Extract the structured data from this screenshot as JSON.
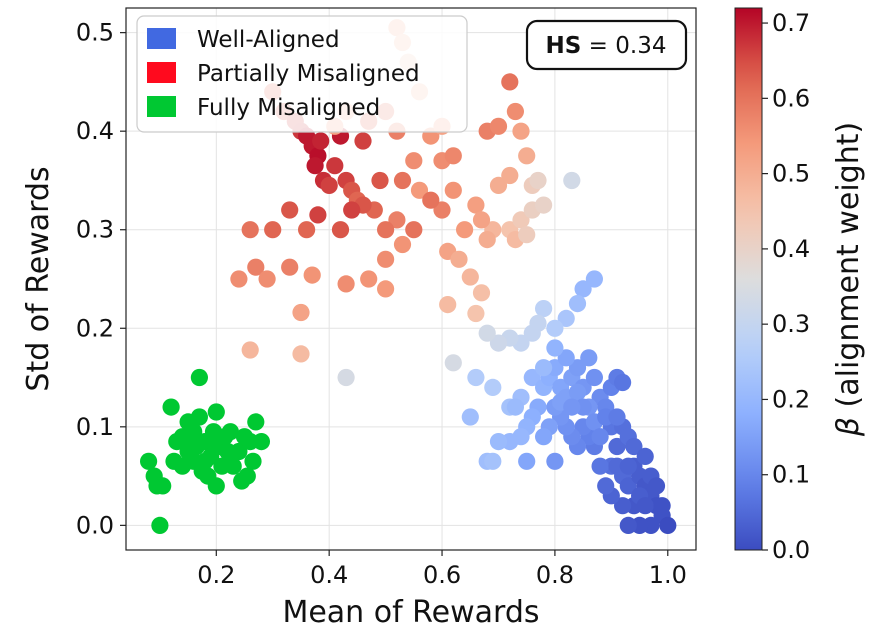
{
  "chart_data": {
    "type": "scatter",
    "xlabel": "Mean of Rewards",
    "ylabel": "Std of Rewards",
    "xlim": [
      0.04,
      1.05
    ],
    "ylim": [
      -0.025,
      0.525
    ],
    "xticks": [
      "0.2",
      "0.4",
      "0.6",
      "0.8",
      "1.0"
    ],
    "yticks": [
      "0.0",
      "0.1",
      "0.2",
      "0.3",
      "0.4",
      "0.5"
    ],
    "grid": true,
    "annotation": {
      "bold": "HS",
      "text": " = 0.34",
      "placement": "top-right"
    },
    "legend": {
      "placement": "top-left",
      "entries": [
        {
          "label": "Well-Aligned",
          "color": "#4169e1"
        },
        {
          "label": "Partially Misaligned",
          "color": "#ff0a1e"
        },
        {
          "label": "Fully Misaligned",
          "color": "#00c832"
        }
      ]
    },
    "colorbar": {
      "label": "β (alignment weight)",
      "label_symbol": "β",
      "label_rest": " (alignment weight)",
      "colormap": "coolwarm",
      "range": [
        0.0,
        0.72
      ],
      "ticks": [
        "0.0",
        "0.1",
        "0.2",
        "0.3",
        "0.4",
        "0.5",
        "0.6",
        "0.7"
      ]
    },
    "series": [
      {
        "group": "Fully Misaligned",
        "color": "#00c832",
        "points": [
          [
            0.08,
            0.065
          ],
          [
            0.09,
            0.05
          ],
          [
            0.095,
            0.04
          ],
          [
            0.105,
            0.04
          ],
          [
            0.1,
            0.0
          ],
          [
            0.12,
            0.12
          ],
          [
            0.125,
            0.065
          ],
          [
            0.13,
            0.085
          ],
          [
            0.14,
            0.09
          ],
          [
            0.14,
            0.06
          ],
          [
            0.15,
            0.105
          ],
          [
            0.15,
            0.075
          ],
          [
            0.16,
            0.095
          ],
          [
            0.16,
            0.065
          ],
          [
            0.165,
            0.08
          ],
          [
            0.17,
            0.15
          ],
          [
            0.17,
            0.11
          ],
          [
            0.175,
            0.055
          ],
          [
            0.18,
            0.085
          ],
          [
            0.18,
            0.065
          ],
          [
            0.19,
            0.07
          ],
          [
            0.195,
            0.095
          ],
          [
            0.2,
            0.115
          ],
          [
            0.205,
            0.08
          ],
          [
            0.21,
            0.06
          ],
          [
            0.215,
            0.09
          ],
          [
            0.22,
            0.075
          ],
          [
            0.225,
            0.095
          ],
          [
            0.23,
            0.06
          ],
          [
            0.24,
            0.075
          ],
          [
            0.245,
            0.045
          ],
          [
            0.25,
            0.09
          ],
          [
            0.255,
            0.05
          ],
          [
            0.26,
            0.085
          ],
          [
            0.265,
            0.065
          ],
          [
            0.27,
            0.105
          ],
          [
            0.28,
            0.085
          ],
          [
            0.15,
            0.085
          ],
          [
            0.185,
            0.05
          ],
          [
            0.2,
            0.04
          ]
        ]
      },
      {
        "group": "Partially Misaligned",
        "points": [
          [
            0.3,
            0.44,
            0.62
          ],
          [
            0.32,
            0.42,
            0.64
          ],
          [
            0.34,
            0.41,
            0.66
          ],
          [
            0.35,
            0.4,
            0.67
          ],
          [
            0.36,
            0.395,
            0.7
          ],
          [
            0.37,
            0.385,
            0.7
          ],
          [
            0.38,
            0.375,
            0.71
          ],
          [
            0.375,
            0.365,
            0.7
          ],
          [
            0.385,
            0.39,
            0.69
          ],
          [
            0.39,
            0.35,
            0.68
          ],
          [
            0.4,
            0.345,
            0.66
          ],
          [
            0.41,
            0.365,
            0.67
          ],
          [
            0.42,
            0.395,
            0.7
          ],
          [
            0.43,
            0.35,
            0.66
          ],
          [
            0.44,
            0.34,
            0.64
          ],
          [
            0.45,
            0.33,
            0.62
          ],
          [
            0.46,
            0.39,
            0.66
          ],
          [
            0.47,
            0.41,
            0.62
          ],
          [
            0.49,
            0.35,
            0.64
          ],
          [
            0.5,
            0.42,
            0.6
          ],
          [
            0.52,
            0.4,
            0.58
          ],
          [
            0.53,
            0.35,
            0.6
          ],
          [
            0.55,
            0.37,
            0.56
          ],
          [
            0.56,
            0.34,
            0.54
          ],
          [
            0.58,
            0.395,
            0.55
          ],
          [
            0.6,
            0.37,
            0.56
          ],
          [
            0.62,
            0.375,
            0.57
          ],
          [
            0.62,
            0.34,
            0.55
          ],
          [
            0.66,
            0.325,
            0.53
          ],
          [
            0.68,
            0.4,
            0.58
          ],
          [
            0.7,
            0.405,
            0.57
          ],
          [
            0.72,
            0.45,
            0.6
          ],
          [
            0.73,
            0.42,
            0.56
          ],
          [
            0.74,
            0.4,
            0.52
          ],
          [
            0.75,
            0.375,
            0.5
          ],
          [
            0.7,
            0.345,
            0.5
          ],
          [
            0.72,
            0.355,
            0.5
          ],
          [
            0.69,
            0.3,
            0.48
          ],
          [
            0.72,
            0.3,
            0.45
          ],
          [
            0.74,
            0.31,
            0.43
          ],
          [
            0.76,
            0.32,
            0.41
          ],
          [
            0.78,
            0.325,
            0.4
          ],
          [
            0.76,
            0.345,
            0.42
          ],
          [
            0.73,
            0.29,
            0.47
          ],
          [
            0.67,
            0.31,
            0.52
          ],
          [
            0.68,
            0.29,
            0.5
          ],
          [
            0.64,
            0.3,
            0.54
          ],
          [
            0.6,
            0.32,
            0.58
          ],
          [
            0.58,
            0.33,
            0.6
          ],
          [
            0.55,
            0.3,
            0.6
          ],
          [
            0.52,
            0.31,
            0.58
          ],
          [
            0.5,
            0.3,
            0.6
          ],
          [
            0.48,
            0.32,
            0.62
          ],
          [
            0.46,
            0.325,
            0.64
          ],
          [
            0.44,
            0.32,
            0.66
          ],
          [
            0.42,
            0.3,
            0.64
          ],
          [
            0.38,
            0.315,
            0.66
          ],
          [
            0.36,
            0.3,
            0.62
          ],
          [
            0.33,
            0.32,
            0.64
          ],
          [
            0.3,
            0.3,
            0.62
          ],
          [
            0.26,
            0.3,
            0.6
          ],
          [
            0.27,
            0.262,
            0.58
          ],
          [
            0.29,
            0.25,
            0.56
          ],
          [
            0.24,
            0.25,
            0.56
          ],
          [
            0.33,
            0.262,
            0.58
          ],
          [
            0.37,
            0.254,
            0.55
          ],
          [
            0.43,
            0.245,
            0.56
          ],
          [
            0.47,
            0.25,
            0.55
          ],
          [
            0.5,
            0.24,
            0.54
          ],
          [
            0.5,
            0.27,
            0.56
          ],
          [
            0.53,
            0.285,
            0.55
          ],
          [
            0.61,
            0.278,
            0.52
          ],
          [
            0.63,
            0.27,
            0.5
          ],
          [
            0.65,
            0.252,
            0.48
          ],
          [
            0.67,
            0.236,
            0.46
          ],
          [
            0.61,
            0.224,
            0.47
          ],
          [
            0.66,
            0.215,
            0.45
          ],
          [
            0.35,
            0.216,
            0.52
          ],
          [
            0.26,
            0.178,
            0.48
          ],
          [
            0.35,
            0.174,
            0.47
          ],
          [
            0.6,
            0.405,
            0.52
          ],
          [
            0.56,
            0.44,
            0.47
          ],
          [
            0.54,
            0.47,
            0.44
          ],
          [
            0.52,
            0.505,
            0.5
          ],
          [
            0.53,
            0.49,
            0.47
          ],
          [
            0.41,
            0.405,
            0.52
          ],
          [
            0.43,
            0.42,
            0.5
          ],
          [
            0.75,
            0.295,
            0.42
          ],
          [
            0.77,
            0.35,
            0.4
          ]
        ]
      },
      {
        "group": "Well-Aligned",
        "points": [
          [
            0.83,
            0.35,
            0.33
          ],
          [
            0.87,
            0.25,
            0.2
          ],
          [
            0.85,
            0.24,
            0.2
          ],
          [
            0.84,
            0.225,
            0.22
          ],
          [
            0.82,
            0.21,
            0.24
          ],
          [
            0.8,
            0.2,
            0.26
          ],
          [
            0.78,
            0.22,
            0.28
          ],
          [
            0.77,
            0.205,
            0.3
          ],
          [
            0.76,
            0.195,
            0.3
          ],
          [
            0.74,
            0.185,
            0.3
          ],
          [
            0.72,
            0.19,
            0.31
          ],
          [
            0.7,
            0.185,
            0.32
          ],
          [
            0.68,
            0.195,
            0.33
          ],
          [
            0.62,
            0.165,
            0.34
          ],
          [
            0.43,
            0.15,
            0.34
          ],
          [
            0.66,
            0.15,
            0.26
          ],
          [
            0.65,
            0.11,
            0.22
          ],
          [
            0.69,
            0.14,
            0.26
          ],
          [
            0.72,
            0.12,
            0.23
          ],
          [
            0.74,
            0.13,
            0.22
          ],
          [
            0.76,
            0.15,
            0.2
          ],
          [
            0.78,
            0.14,
            0.19
          ],
          [
            0.79,
            0.15,
            0.18
          ],
          [
            0.8,
            0.16,
            0.17
          ],
          [
            0.81,
            0.14,
            0.16
          ],
          [
            0.82,
            0.13,
            0.15
          ],
          [
            0.83,
            0.15,
            0.15
          ],
          [
            0.84,
            0.16,
            0.14
          ],
          [
            0.85,
            0.14,
            0.13
          ],
          [
            0.86,
            0.17,
            0.14
          ],
          [
            0.87,
            0.15,
            0.12
          ],
          [
            0.88,
            0.13,
            0.11
          ],
          [
            0.89,
            0.12,
            0.1
          ],
          [
            0.9,
            0.14,
            0.09
          ],
          [
            0.91,
            0.15,
            0.08
          ],
          [
            0.92,
            0.145,
            0.07
          ],
          [
            0.9,
            0.1,
            0.07
          ],
          [
            0.92,
            0.1,
            0.06
          ],
          [
            0.91,
            0.08,
            0.05
          ],
          [
            0.9,
            0.06,
            0.06
          ],
          [
            0.92,
            0.05,
            0.05
          ],
          [
            0.93,
            0.04,
            0.04
          ],
          [
            0.94,
            0.06,
            0.03
          ],
          [
            0.95,
            0.05,
            0.03
          ],
          [
            0.96,
            0.04,
            0.02
          ],
          [
            0.97,
            0.03,
            0.02
          ],
          [
            0.98,
            0.02,
            0.01
          ],
          [
            0.99,
            0.01,
            0.01
          ],
          [
            1.0,
            0.0,
            0.0
          ],
          [
            0.97,
            0.0,
            0.01
          ],
          [
            0.95,
            0.0,
            0.01
          ],
          [
            0.93,
            0.0,
            0.02
          ],
          [
            0.94,
            0.02,
            0.02
          ],
          [
            0.92,
            0.02,
            0.03
          ],
          [
            0.9,
            0.03,
            0.04
          ],
          [
            0.89,
            0.04,
            0.05
          ],
          [
            0.88,
            0.06,
            0.07
          ],
          [
            0.87,
            0.08,
            0.08
          ],
          [
            0.86,
            0.09,
            0.09
          ],
          [
            0.85,
            0.1,
            0.1
          ],
          [
            0.84,
            0.08,
            0.1
          ],
          [
            0.83,
            0.09,
            0.11
          ],
          [
            0.82,
            0.1,
            0.12
          ],
          [
            0.81,
            0.11,
            0.13
          ],
          [
            0.8,
            0.12,
            0.14
          ],
          [
            0.79,
            0.1,
            0.15
          ],
          [
            0.78,
            0.09,
            0.16
          ],
          [
            0.77,
            0.12,
            0.17
          ],
          [
            0.76,
            0.11,
            0.18
          ],
          [
            0.75,
            0.1,
            0.19
          ],
          [
            0.74,
            0.09,
            0.2
          ],
          [
            0.73,
            0.12,
            0.21
          ],
          [
            0.72,
            0.085,
            0.2
          ],
          [
            0.7,
            0.085,
            0.21
          ],
          [
            0.68,
            0.065,
            0.22
          ],
          [
            0.69,
            0.065,
            0.23
          ],
          [
            0.75,
            0.065,
            0.16
          ],
          [
            0.8,
            0.065,
            0.13
          ],
          [
            0.86,
            0.12,
            0.13
          ],
          [
            0.87,
            0.105,
            0.12
          ],
          [
            0.88,
            0.09,
            0.1
          ],
          [
            0.89,
            0.11,
            0.09
          ],
          [
            0.91,
            0.11,
            0.08
          ],
          [
            0.93,
            0.09,
            0.06
          ],
          [
            0.94,
            0.08,
            0.05
          ],
          [
            0.96,
            0.07,
            0.04
          ],
          [
            0.95,
            0.03,
            0.03
          ],
          [
            0.97,
            0.05,
            0.03
          ],
          [
            0.84,
            0.135,
            0.14
          ],
          [
            0.82,
            0.17,
            0.16
          ],
          [
            0.8,
            0.18,
            0.19
          ],
          [
            0.78,
            0.16,
            0.21
          ],
          [
            0.81,
            0.125,
            0.15
          ],
          [
            0.85,
            0.12,
            0.12
          ],
          [
            0.83,
            0.12,
            0.13
          ],
          [
            0.91,
            0.06,
            0.05
          ],
          [
            0.93,
            0.06,
            0.04
          ],
          [
            0.96,
            0.02,
            0.02
          ],
          [
            0.98,
            0.04,
            0.02
          ],
          [
            0.99,
            0.02,
            0.01
          ]
        ]
      }
    ]
  }
}
